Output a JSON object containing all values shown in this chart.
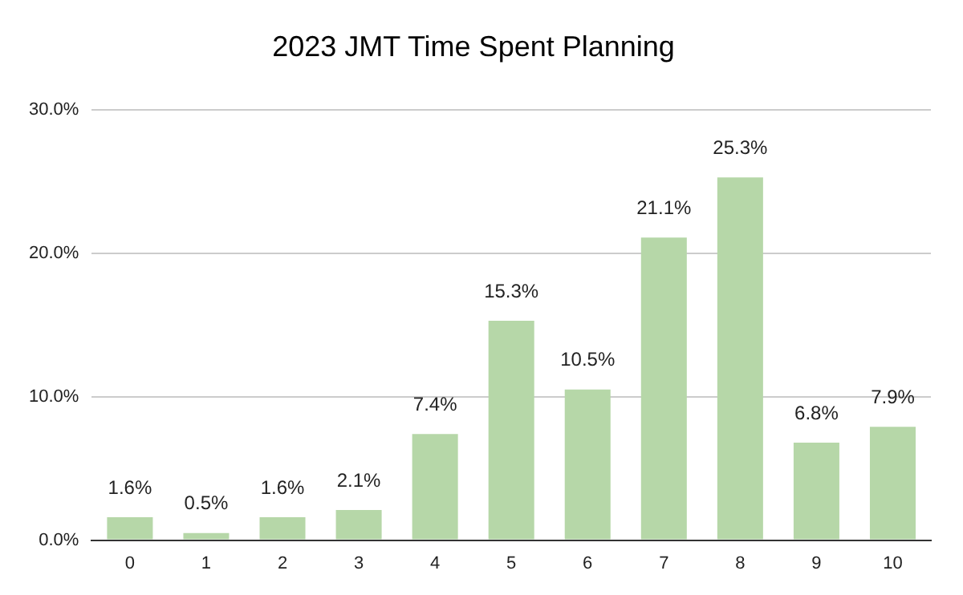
{
  "chart_data": {
    "type": "bar",
    "title": "2023 JMT Time Spent Planning",
    "categories": [
      "0",
      "1",
      "2",
      "3",
      "4",
      "5",
      "6",
      "7",
      "8",
      "9",
      "10"
    ],
    "values": [
      1.6,
      0.5,
      1.6,
      2.1,
      7.4,
      15.3,
      10.5,
      21.1,
      25.3,
      6.8,
      7.9
    ],
    "value_labels": [
      "1.6%",
      "0.5%",
      "1.6%",
      "2.1%",
      "7.4%",
      "15.3%",
      "10.5%",
      "21.1%",
      "25.3%",
      "6.8%",
      "7.9%"
    ],
    "color": "#b6d7a8",
    "ylim": [
      0,
      30
    ],
    "yticks": [
      {
        "value": 0,
        "label": "0.0%"
      },
      {
        "value": 10,
        "label": "10.0%"
      },
      {
        "value": 20,
        "label": "20.0%"
      },
      {
        "value": 30,
        "label": "30.0%"
      }
    ],
    "grid": "y",
    "legend": false
  }
}
